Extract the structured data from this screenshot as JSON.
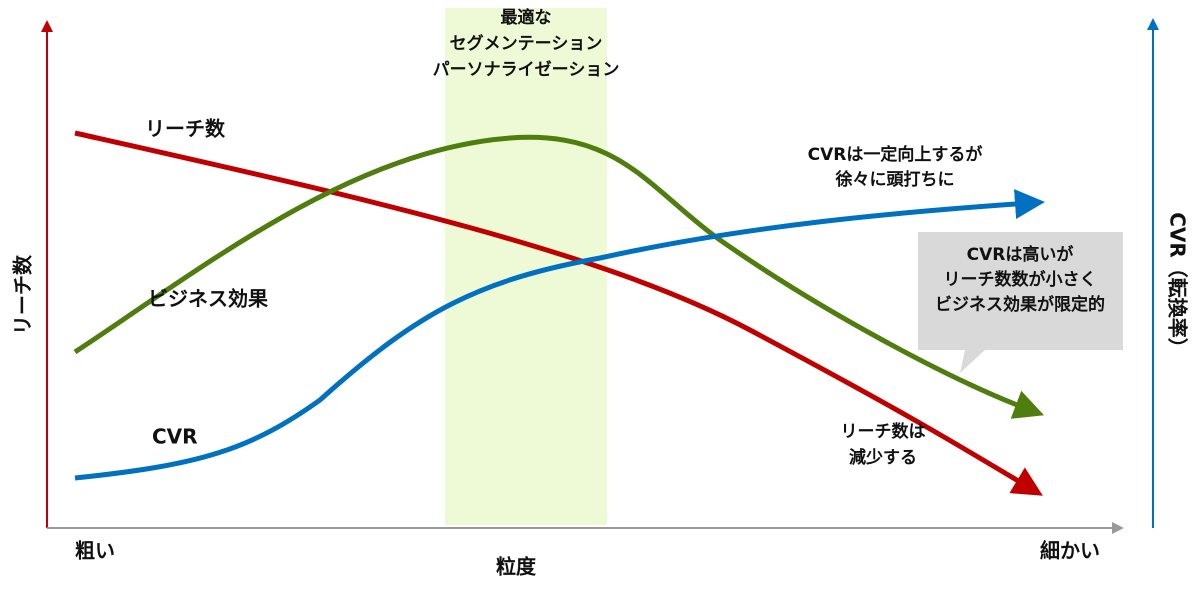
{
  "band_label": [
    "最適な",
    "セグメンテーション",
    "パーソナライゼーション"
  ],
  "curve_labels": {
    "reach": "リーチ数",
    "business": "ビジネス効果",
    "cvr": "CVR"
  },
  "annotations": {
    "cvr_note": [
      "CVRは一定向上するが",
      "徐々に頭打ちに"
    ],
    "reach_note": [
      "リーチ数は",
      "減少する"
    ],
    "callout": [
      "CVRは高いが",
      "リーチ数数が小さく",
      "ビジネス効果が限定的"
    ]
  },
  "axes": {
    "x_left": "粗い",
    "x_title": "粒度",
    "x_right": "細かい",
    "y_left": "リーチ数",
    "y_right": "CVR（転換率）"
  }
}
